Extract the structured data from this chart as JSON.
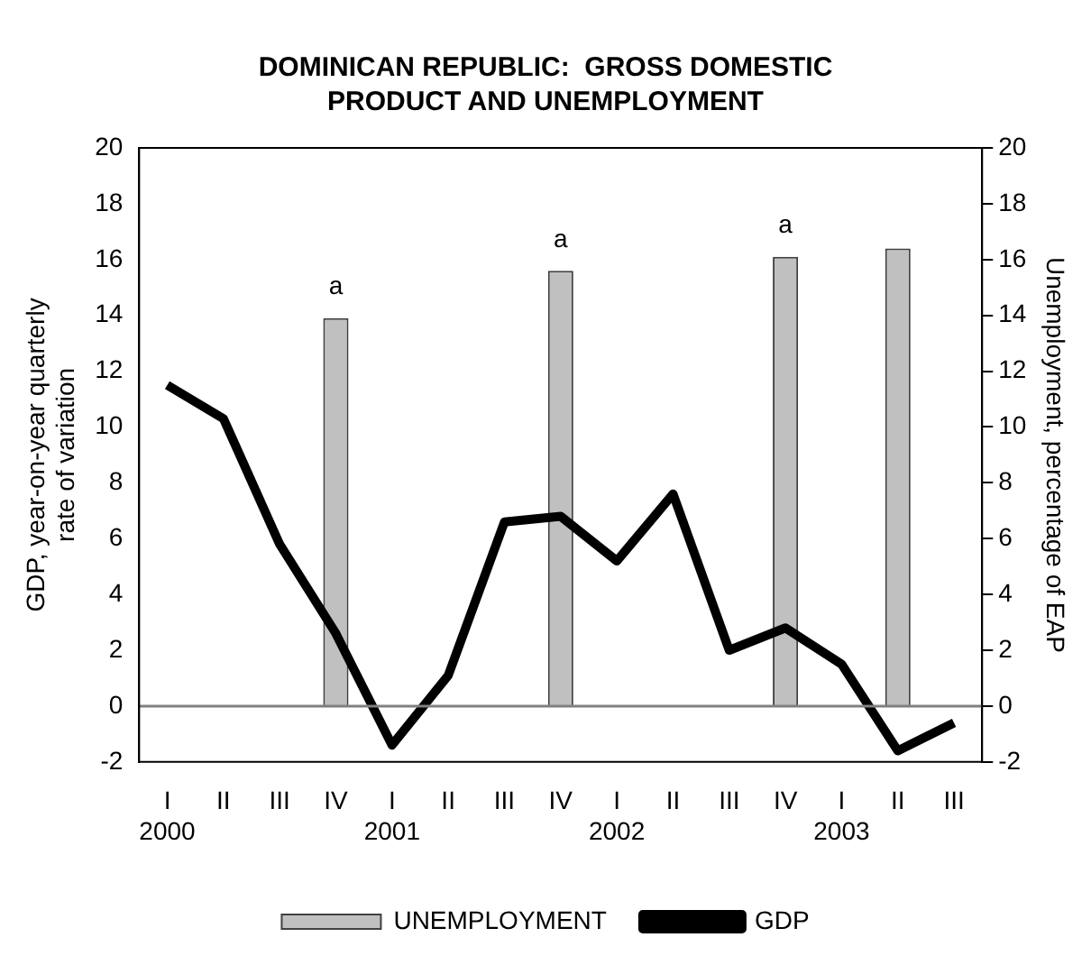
{
  "chart_data": {
    "type": "bar",
    "title": "DOMINICAN REPUBLIC:  GROSS DOMESTIC PRODUCT AND UNEMPLOYMENT",
    "ylabel": "GDP, year-on-year quarterly rate of variation",
    "y2label": "Unemployment, percentage of EAP",
    "categories": [
      "I\n2000",
      "II",
      "III",
      "IV",
      "I\n2001",
      "II",
      "III",
      "IV",
      "I\n2002",
      "II",
      "III",
      "IV",
      "I\n2003",
      "II",
      "III"
    ],
    "series": [
      {
        "name": "UNEMPLOYMENT",
        "axis": "y2",
        "color": "#c0c0c0",
        "values": [
          null,
          null,
          null,
          13.9,
          null,
          null,
          null,
          15.6,
          null,
          null,
          null,
          16.1,
          null,
          16.4,
          null
        ],
        "value_labels": [
          null,
          null,
          null,
          "a",
          null,
          null,
          null,
          "a",
          null,
          null,
          null,
          "a",
          null,
          null,
          null
        ]
      },
      {
        "name": "GDP",
        "type": "line",
        "color": "#000000",
        "values": [
          11.5,
          10.3,
          5.8,
          2.6,
          -1.4,
          1.1,
          6.6,
          6.8,
          5.2,
          7.6,
          2.0,
          2.8,
          1.5,
          -1.6,
          -0.6
        ]
      }
    ],
    "ylim": [
      -2,
      20
    ],
    "yticks": [
      -2,
      0,
      2,
      4,
      6,
      8,
      10,
      12,
      14,
      16,
      18,
      20
    ],
    "y2lim": [
      -2,
      20
    ],
    "y2ticks": [
      -2,
      0,
      2,
      4,
      6,
      8,
      10,
      12,
      14,
      16,
      18,
      20
    ],
    "ref_lines": [
      {
        "axis": "y",
        "value": 0,
        "color": "#808080"
      }
    ],
    "grid": false,
    "legend": "bottom",
    "marker": "none",
    "line_style": "solid"
  }
}
